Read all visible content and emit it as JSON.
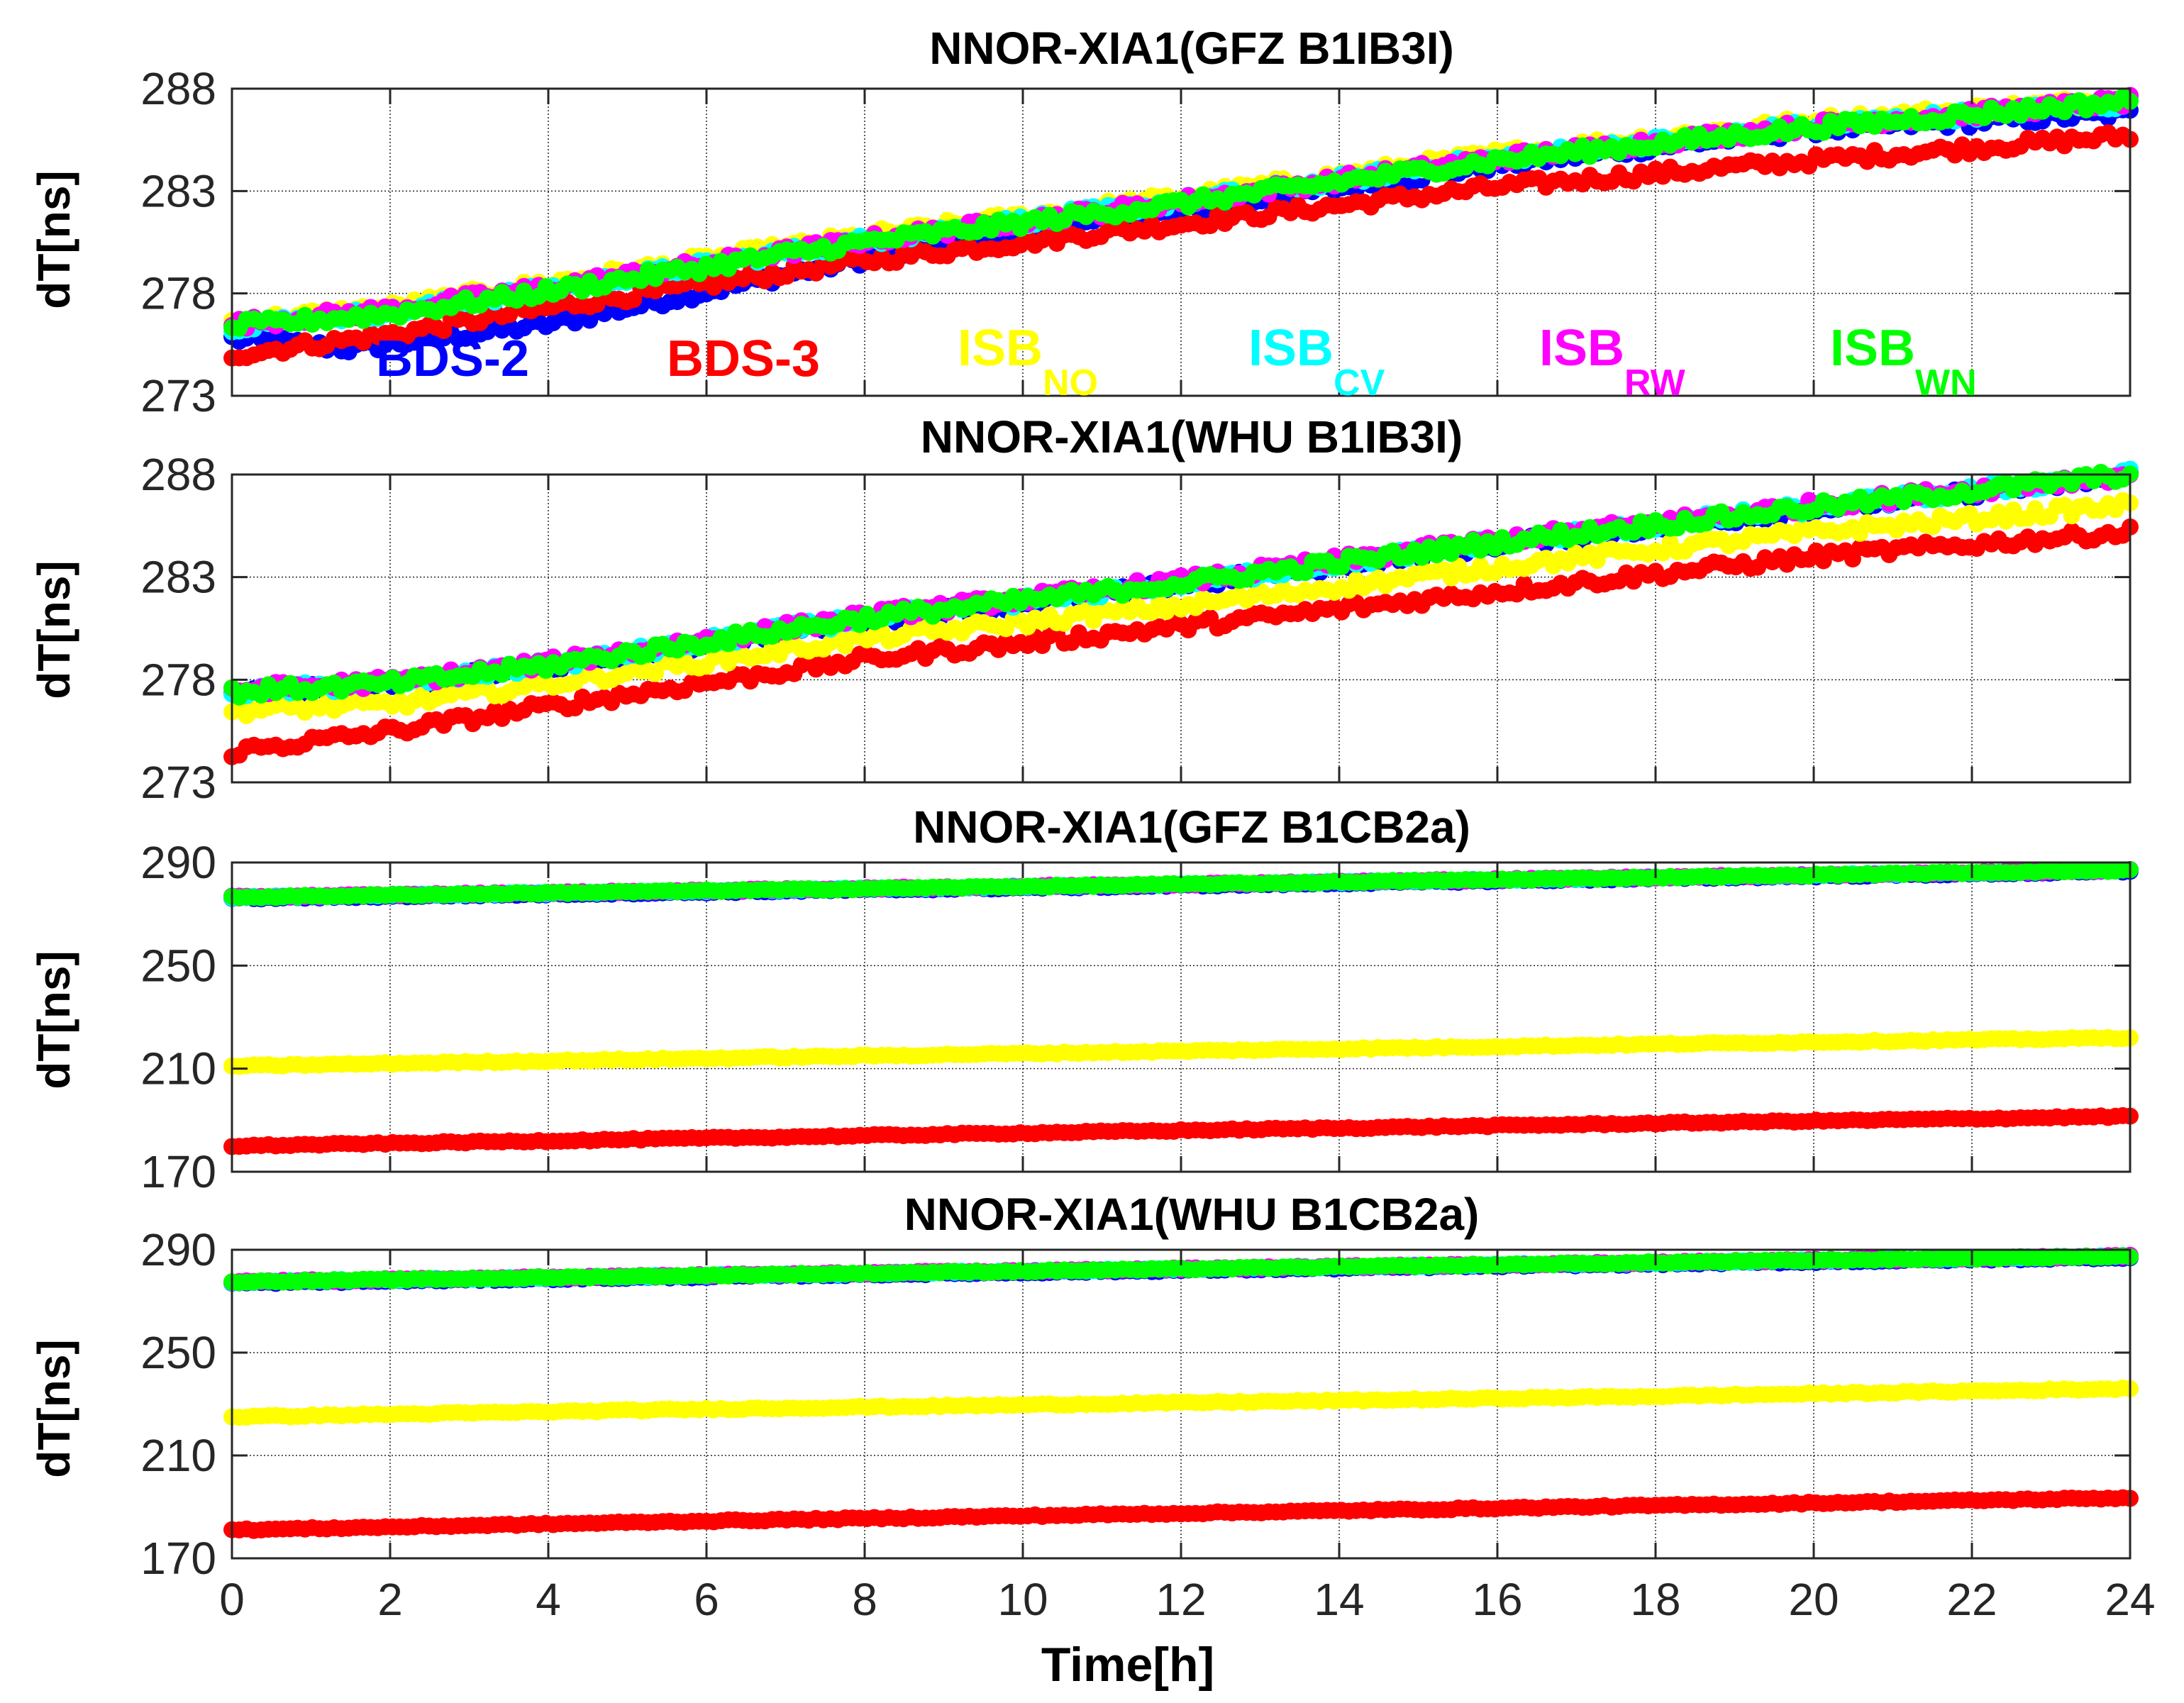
{
  "chart_data": [
    {
      "type": "scatter",
      "title": "NNOR-XIA1(GFZ B1IB3I)",
      "xlabel": "",
      "ylabel": "dT[ns]",
      "xlim": [
        0,
        24
      ],
      "ylim": [
        273,
        288
      ],
      "yticks": [
        "273",
        "278",
        "283",
        "288"
      ],
      "grid": true,
      "series": [
        {
          "name": "BDS-2",
          "color": "#0000ff",
          "x": [
            0,
            1.5,
            4,
            8,
            12,
            16,
            20,
            24
          ],
          "values": [
            275.8,
            275.3,
            276.5,
            279.7,
            282.0,
            284.3,
            286.0,
            286.8
          ]
        },
        {
          "name": "BDS-3",
          "color": "#ff0000",
          "x": [
            0,
            2,
            4,
            8,
            12,
            16,
            20,
            24
          ],
          "values": [
            275.0,
            276.0,
            277.3,
            279.6,
            281.4,
            283.2,
            284.5,
            285.7
          ]
        },
        {
          "name": "ISB_NO",
          "color": "#ffff00",
          "x": [
            0,
            2,
            4,
            8,
            12,
            16,
            20,
            24
          ],
          "values": [
            276.6,
            277.3,
            278.5,
            280.8,
            282.7,
            284.8,
            286.4,
            287.5
          ]
        },
        {
          "name": "ISB_CV",
          "color": "#00ffff",
          "x": [
            0,
            2,
            4,
            8,
            12,
            16,
            20,
            24
          ],
          "values": [
            276.4,
            277.1,
            278.2,
            280.6,
            282.5,
            284.6,
            286.2,
            287.3
          ]
        },
        {
          "name": "ISB_RW",
          "color": "#ff00ff",
          "x": [
            0,
            2,
            4,
            8,
            12,
            16,
            20,
            24
          ],
          "values": [
            276.5,
            277.2,
            278.3,
            280.6,
            282.5,
            284.6,
            286.2,
            287.4
          ]
        },
        {
          "name": "ISB_WN",
          "color": "#00ff00",
          "x": [
            0,
            2,
            4,
            8,
            12,
            16,
            20,
            24
          ],
          "values": [
            276.4,
            277.0,
            278.1,
            280.5,
            282.4,
            284.5,
            286.1,
            287.4
          ]
        }
      ]
    },
    {
      "type": "scatter",
      "title": "NNOR-XIA1(WHU B1IB3I)",
      "xlabel": "",
      "ylabel": "dT[ns]",
      "xlim": [
        0,
        24
      ],
      "ylim": [
        273,
        288
      ],
      "yticks": [
        "273",
        "278",
        "283",
        "288"
      ],
      "grid": true,
      "series": [
        {
          "name": "BDS-2",
          "color": "#0000ff",
          "x": [
            0,
            2,
            4,
            8,
            12,
            16,
            20,
            24
          ],
          "values": [
            277.3,
            277.7,
            278.6,
            280.9,
            282.6,
            284.6,
            286.3,
            287.9
          ]
        },
        {
          "name": "BDS-3",
          "color": "#ff0000",
          "x": [
            0,
            2,
            4,
            8,
            12,
            16,
            20,
            24
          ],
          "values": [
            274.5,
            275.5,
            276.7,
            279.0,
            280.6,
            282.3,
            284.0,
            285.2
          ]
        },
        {
          "name": "ISB_NO",
          "color": "#ffff00",
          "x": [
            0,
            2,
            4,
            8,
            12,
            16,
            20,
            24
          ],
          "values": [
            276.5,
            276.8,
            277.8,
            280.0,
            281.6,
            283.5,
            285.2,
            286.5
          ]
        },
        {
          "name": "ISB_CV",
          "color": "#00ffff",
          "x": [
            0,
            2,
            4,
            8,
            12,
            16,
            20,
            24
          ],
          "values": [
            277.4,
            277.8,
            278.7,
            281.0,
            282.7,
            284.7,
            286.4,
            288.0
          ]
        },
        {
          "name": "ISB_RW",
          "color": "#ff00ff",
          "x": [
            0,
            2,
            4,
            8,
            12,
            16,
            20,
            24
          ],
          "values": [
            277.5,
            277.9,
            278.8,
            281.1,
            282.8,
            284.8,
            286.5,
            288.0
          ]
        },
        {
          "name": "ISB_WN",
          "color": "#00ff00",
          "x": [
            0,
            2,
            4,
            8,
            12,
            16,
            20,
            24
          ],
          "values": [
            277.4,
            277.8,
            278.7,
            281.0,
            282.7,
            284.7,
            286.4,
            288.0
          ]
        }
      ]
    },
    {
      "type": "scatter",
      "title": "NNOR-XIA1(GFZ B1CB2a)",
      "xlabel": "",
      "ylabel": "dT[ns]",
      "xlim": [
        0,
        24
      ],
      "ylim": [
        170,
        290
      ],
      "yticks": [
        "170",
        "210",
        "250",
        "290"
      ],
      "grid": true,
      "series": [
        {
          "name": "BDS-2",
          "color": "#0000ff",
          "x": [
            0,
            6,
            12,
            18,
            24
          ],
          "values": [
            276.0,
            278.5,
            281.0,
            283.8,
            286.5
          ]
        },
        {
          "name": "BDS-3",
          "color": "#ff0000",
          "x": [
            0,
            6,
            12,
            18,
            24
          ],
          "values": [
            180.0,
            183.0,
            186.0,
            188.8,
            191.5
          ]
        },
        {
          "name": "ISB_NO",
          "color": "#ffff00",
          "x": [
            0,
            6,
            12,
            18,
            24
          ],
          "values": [
            211.0,
            214.0,
            216.8,
            219.5,
            222.0
          ]
        },
        {
          "name": "ISB_CV",
          "color": "#00ffff",
          "x": [
            0,
            6,
            12,
            18,
            24
          ],
          "values": [
            276.5,
            279.0,
            281.5,
            284.2,
            287.0
          ]
        },
        {
          "name": "ISB_RW",
          "color": "#ff00ff",
          "x": [
            0,
            6,
            12,
            18,
            24
          ],
          "values": [
            276.6,
            279.1,
            281.6,
            284.3,
            287.0
          ]
        },
        {
          "name": "ISB_WN",
          "color": "#00ff00",
          "x": [
            0,
            6,
            12,
            18,
            24
          ],
          "values": [
            276.5,
            279.0,
            281.5,
            284.2,
            287.0
          ]
        }
      ]
    },
    {
      "type": "scatter",
      "title": "NNOR-XIA1(WHU B1CB2a)",
      "xlabel": "Time[h]",
      "ylabel": "dT[ns]",
      "xlim": [
        0,
        24
      ],
      "ylim": [
        170,
        290
      ],
      "yticks": [
        "170",
        "210",
        "250",
        "290"
      ],
      "xticks": [
        "0",
        "2",
        "4",
        "6",
        "8",
        "10",
        "12",
        "14",
        "16",
        "18",
        "20",
        "22",
        "24"
      ],
      "grid": true,
      "series": [
        {
          "name": "BDS-2",
          "color": "#0000ff",
          "x": [
            0,
            6,
            12,
            18,
            24
          ],
          "values": [
            277.0,
            279.5,
            282.0,
            284.5,
            287.0
          ]
        },
        {
          "name": "BDS-3",
          "color": "#ff0000",
          "x": [
            0,
            6,
            12,
            18,
            24
          ],
          "values": [
            181.0,
            184.5,
            187.5,
            190.5,
            193.5
          ]
        },
        {
          "name": "ISB_NO",
          "color": "#ffff00",
          "x": [
            0,
            6,
            12,
            18,
            24
          ],
          "values": [
            225.0,
            228.0,
            230.5,
            233.0,
            236.0
          ]
        },
        {
          "name": "ISB_CV",
          "color": "#00ffff",
          "x": [
            0,
            6,
            12,
            18,
            24
          ],
          "values": [
            277.5,
            280.0,
            282.5,
            285.0,
            287.5
          ]
        },
        {
          "name": "ISB_RW",
          "color": "#ff00ff",
          "x": [
            0,
            6,
            12,
            18,
            24
          ],
          "values": [
            277.6,
            280.1,
            282.6,
            285.1,
            287.6
          ]
        },
        {
          "name": "ISB_WN",
          "color": "#00ff00",
          "x": [
            0,
            6,
            12,
            18,
            24
          ],
          "values": [
            277.5,
            280.0,
            282.5,
            285.0,
            287.5
          ]
        }
      ]
    }
  ],
  "legend": {
    "items": [
      {
        "main": "BDS-2",
        "sub": "",
        "color": "#0000ff"
      },
      {
        "main": "BDS-3",
        "sub": "",
        "color": "#ff0000"
      },
      {
        "main": "ISB",
        "sub": "NO",
        "color": "#ffff00"
      },
      {
        "main": "ISB",
        "sub": "CV",
        "color": "#00ffff"
      },
      {
        "main": "ISB",
        "sub": "RW",
        "color": "#ff00ff"
      },
      {
        "main": "ISB",
        "sub": "WN",
        "color": "#00ff00"
      }
    ]
  }
}
